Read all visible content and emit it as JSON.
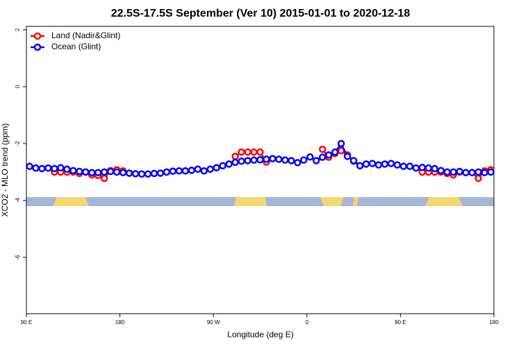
{
  "chart_data": {
    "type": "line",
    "title": "22.5S-17.5S September (Ver 10)   2015-01-01 to 2020-12-18",
    "xlabel": "Longitude (deg E)",
    "ylabel": "XCO2 - MLO trend (ppm)",
    "x": [
      93,
      99,
      105,
      111,
      117,
      123,
      129,
      135,
      141,
      147,
      153,
      159,
      165,
      171,
      177,
      183,
      189,
      195,
      201,
      207,
      213,
      219,
      225,
      231,
      237,
      243,
      249,
      255,
      261,
      267,
      273,
      279,
      285,
      291,
      297,
      303,
      309,
      315,
      321,
      327,
      333,
      339,
      345,
      351,
      357,
      363,
      369,
      375,
      381,
      387,
      393,
      399,
      405,
      411,
      417,
      423,
      429,
      435,
      441,
      447,
      453,
      459,
      465,
      471,
      477,
      483,
      489,
      495,
      501,
      507,
      513,
      519,
      525,
      531,
      537
    ],
    "series": [
      {
        "name": "Land (Nadir&Glint)",
        "color": "#ff0000",
        "values": [
          null,
          null,
          null,
          null,
          -3.0,
          -3.0,
          -3.0,
          -3.0,
          -3.05,
          -3.0,
          -3.1,
          -3.12,
          -3.22,
          -2.95,
          -2.92,
          -2.96,
          null,
          null,
          null,
          null,
          null,
          null,
          null,
          null,
          null,
          null,
          null,
          null,
          null,
          null,
          null,
          null,
          null,
          -2.45,
          -2.3,
          -2.3,
          -2.3,
          -2.3,
          -2.65,
          null,
          null,
          null,
          null,
          null,
          null,
          null,
          null,
          -2.2,
          -2.48,
          -2.35,
          -2.25,
          -2.4,
          -2.62,
          null,
          null,
          null,
          null,
          null,
          null,
          null,
          null,
          null,
          null,
          -3.0,
          -3.0,
          -3.0,
          -3.0,
          -3.05,
          -3.1,
          -3.0,
          -3.02,
          -3.02,
          -3.22,
          -2.96,
          -2.92
        ]
      },
      {
        "name": "Ocean (Glint)",
        "color": "#0000ff",
        "values": [
          -2.8,
          -2.86,
          -2.88,
          -2.86,
          -2.88,
          -2.85,
          -2.9,
          -2.95,
          -2.98,
          -3.0,
          -3.02,
          -3.02,
          -3.0,
          -2.98,
          -3.0,
          -3.02,
          -3.04,
          -3.06,
          -3.07,
          -3.07,
          -3.05,
          -3.04,
          -3.0,
          -2.97,
          -2.96,
          -2.96,
          -2.94,
          -2.9,
          -2.96,
          -2.9,
          -2.85,
          -2.78,
          -2.72,
          -2.66,
          -2.62,
          -2.6,
          -2.58,
          -2.57,
          -2.55,
          -2.53,
          -2.55,
          -2.58,
          -2.6,
          -2.67,
          -2.58,
          -2.47,
          -2.6,
          -2.48,
          -2.4,
          -2.3,
          -2.0,
          -2.45,
          -2.6,
          -2.78,
          -2.72,
          -2.7,
          -2.75,
          -2.72,
          -2.7,
          -2.75,
          -2.8,
          -2.8,
          -2.86,
          -2.84,
          -2.86,
          -2.88,
          -2.95,
          -3.0,
          -3.0,
          -2.98,
          -3.02,
          -3.02,
          -3.0,
          -3.02,
          -3.0
        ]
      }
    ],
    "xlim": [
      90,
      540
    ],
    "xticks": [
      {
        "value": 90,
        "label": "90 E"
      },
      180,
      {
        "value": 270,
        "label": "90 W"
      },
      {
        "value": 360,
        "label": "0"
      },
      {
        "value": 450,
        "label": "90 E"
      },
      {
        "value": 540,
        "label": "180"
      }
    ],
    "ylim": [
      -7.98,
      2.12
    ],
    "yticks": [
      -6,
      -4,
      -2,
      0,
      2
    ],
    "legend": "top-left"
  }
}
